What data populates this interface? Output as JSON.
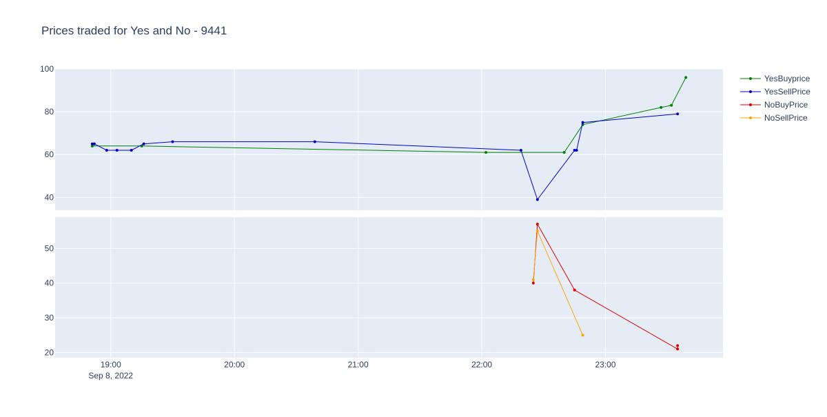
{
  "chart_data": {
    "type": "line",
    "title": "Prices traded for Yes and No - 9441",
    "x_axis": {
      "type": "date",
      "range": [
        "2022-09-08 18:33",
        "2022-09-08 23:57"
      ],
      "tick_labels": [
        "19:00",
        "20:00",
        "21:00",
        "22:00",
        "23:00"
      ],
      "tick_values": [
        "2022-09-08 19:00",
        "2022-09-08 20:00",
        "2022-09-08 21:00",
        "2022-09-08 22:00",
        "2022-09-08 23:00"
      ],
      "date_label": "Sep 8, 2022"
    },
    "subplots": [
      {
        "name": "top",
        "ylim": [
          34,
          100
        ],
        "yticks": [
          40,
          60,
          80,
          100
        ],
        "series": [
          "YesBuyprice",
          "YesSellPrice"
        ]
      },
      {
        "name": "bottom",
        "ylim": [
          18.5,
          59
        ],
        "yticks": [
          20,
          30,
          40,
          50
        ],
        "series": [
          "NoBuyPrice",
          "NoSellPrice"
        ]
      }
    ],
    "grid": true,
    "legend_position": "right",
    "series": [
      {
        "name": "YesBuyprice",
        "color": "#008000",
        "subplot": "top",
        "points": [
          {
            "x": "2022-09-08 18:51",
            "y": 64
          },
          {
            "x": "2022-09-08 19:15",
            "y": 64
          },
          {
            "x": "2022-09-08 22:02",
            "y": 61
          },
          {
            "x": "2022-09-08 22:40",
            "y": 61
          },
          {
            "x": "2022-09-08 22:49",
            "y": 74
          },
          {
            "x": "2022-09-08 23:27",
            "y": 82
          },
          {
            "x": "2022-09-08 23:32",
            "y": 83
          },
          {
            "x": "2022-09-08 23:39",
            "y": 96
          }
        ]
      },
      {
        "name": "YesSellPrice",
        "color": "#0000cc",
        "subplot": "top",
        "points": [
          {
            "x": "2022-09-08 18:51",
            "y": 65
          },
          {
            "x": "2022-09-08 18:52",
            "y": 65
          },
          {
            "x": "2022-09-08 18:58",
            "y": 62
          },
          {
            "x": "2022-09-08 19:03",
            "y": 62
          },
          {
            "x": "2022-09-08 19:10",
            "y": 62
          },
          {
            "x": "2022-09-08 19:16",
            "y": 65
          },
          {
            "x": "2022-09-08 19:30",
            "y": 66
          },
          {
            "x": "2022-09-08 20:39",
            "y": 66
          },
          {
            "x": "2022-09-08 22:19",
            "y": 62
          },
          {
            "x": "2022-09-08 22:27",
            "y": 39
          },
          {
            "x": "2022-09-08 22:45",
            "y": 62
          },
          {
            "x": "2022-09-08 22:46",
            "y": 62
          },
          {
            "x": "2022-09-08 22:49",
            "y": 75
          },
          {
            "x": "2022-09-08 23:35",
            "y": 79
          }
        ]
      },
      {
        "name": "NoBuyPrice",
        "color": "#e00000",
        "subplot": "bottom",
        "points": [
          {
            "x": "2022-09-08 22:25",
            "y": 40
          },
          {
            "x": "2022-09-08 22:27",
            "y": 57
          },
          {
            "x": "2022-09-08 22:45",
            "y": 38
          },
          {
            "x": "2022-09-08 23:35",
            "y": 21
          },
          {
            "x": "2022-09-08 23:35",
            "y": 22
          }
        ]
      },
      {
        "name": "NoSellPrice",
        "color": "#ffa500",
        "subplot": "bottom",
        "points": [
          {
            "x": "2022-09-08 22:25",
            "y": 41
          },
          {
            "x": "2022-09-08 22:27",
            "y": 55
          },
          {
            "x": "2022-09-08 22:49",
            "y": 25
          }
        ]
      }
    ]
  },
  "colors": {
    "plot_background": "#e5ecf6",
    "grid": "#ffffff",
    "text": "#2a3f5f"
  }
}
